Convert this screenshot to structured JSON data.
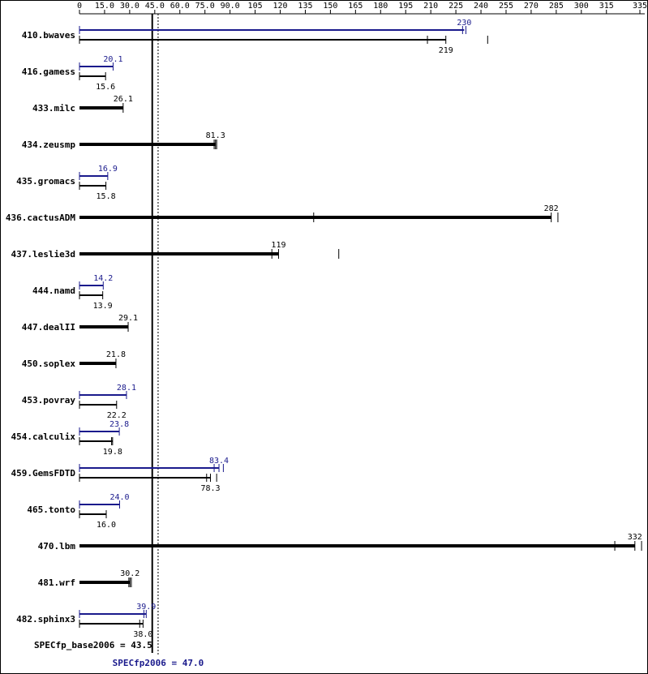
{
  "chart_data": {
    "type": "bar",
    "orientation": "horizontal",
    "x_ticks": [
      "0",
      "15.0",
      "30.0",
      "45.0",
      "60.0",
      "75.0",
      "90.0",
      "105",
      "120",
      "135",
      "150",
      "165",
      "180",
      "195",
      "210",
      "225",
      "240",
      "255",
      "270",
      "285",
      "300",
      "315",
      "335"
    ],
    "xlim": [
      0,
      335
    ],
    "colors": {
      "base": "#000000",
      "peak": "#1a1a8c",
      "frame": "#000000"
    },
    "series": [
      {
        "name": "base"
      },
      {
        "name": "peak"
      }
    ],
    "benchmarks": [
      {
        "name": "410.bwaves",
        "peak": 230,
        "peak_label": "230",
        "peak_runs": [
          229,
          231
        ],
        "base": 219,
        "base_label": "219",
        "base_runs": [
          208,
          219,
          244
        ]
      },
      {
        "name": "416.gamess",
        "peak": 20.1,
        "peak_label": "20.1",
        "peak_runs": [
          20.1
        ],
        "base": 15.6,
        "base_label": "15.6",
        "base_runs": [
          15.6
        ]
      },
      {
        "name": "433.milc",
        "base": 26.1,
        "base_label": "26.1",
        "base_runs": [
          26.1
        ],
        "single": true
      },
      {
        "name": "434.zeusmp",
        "base": 81.3,
        "base_label": "81.3",
        "base_runs": [
          80.5,
          81.3,
          82.0
        ],
        "single": true
      },
      {
        "name": "435.gromacs",
        "peak": 16.9,
        "peak_label": "16.9",
        "peak_runs": [
          16.9
        ],
        "base": 15.8,
        "base_label": "15.8",
        "base_runs": [
          15.8
        ]
      },
      {
        "name": "436.cactusADM",
        "base": 282,
        "base_label": "282",
        "base_runs": [
          140,
          282,
          286
        ],
        "single": true
      },
      {
        "name": "437.leslie3d",
        "base": 119,
        "base_label": "119",
        "base_runs": [
          115,
          119,
          155
        ],
        "single": true
      },
      {
        "name": "444.namd",
        "peak": 14.2,
        "peak_label": "14.2",
        "peak_runs": [
          14.2
        ],
        "base": 13.9,
        "base_label": "13.9",
        "base_runs": [
          13.9
        ]
      },
      {
        "name": "447.dealII",
        "base": 29.1,
        "base_label": "29.1",
        "base_runs": [
          29.1
        ],
        "single": true
      },
      {
        "name": "450.soplex",
        "base": 21.8,
        "base_label": "21.8",
        "base_runs": [
          21.8
        ],
        "single": true
      },
      {
        "name": "453.povray",
        "peak": 28.1,
        "peak_label": "28.1",
        "peak_runs": [
          28.1
        ],
        "base": 22.2,
        "base_label": "22.2",
        "base_runs": [
          22.2
        ]
      },
      {
        "name": "454.calculix",
        "peak": 23.8,
        "peak_label": "23.8",
        "peak_runs": [
          23.8
        ],
        "base": 19.8,
        "base_label": "19.8",
        "base_runs": [
          19.2,
          19.8
        ]
      },
      {
        "name": "459.GemsFDTD",
        "peak": 83.4,
        "peak_label": "83.4",
        "peak_runs": [
          80.5,
          83.4,
          86.0
        ],
        "base": 78.3,
        "base_label": "78.3",
        "base_runs": [
          76.0,
          78.3,
          82.0
        ]
      },
      {
        "name": "465.tonto",
        "peak": 24.0,
        "peak_label": "24.0",
        "peak_runs": [
          24.0
        ],
        "base": 16.0,
        "base_label": "16.0",
        "base_runs": [
          16.0
        ]
      },
      {
        "name": "470.lbm",
        "base": 332,
        "base_label": "332",
        "base_runs": [
          320,
          332,
          336
        ],
        "single": true
      },
      {
        "name": "481.wrf",
        "base": 30.2,
        "base_label": "30.2",
        "base_runs": [
          29.5,
          30.2,
          31.0
        ],
        "single": true
      },
      {
        "name": "482.sphinx3",
        "peak": 39.9,
        "peak_label": "39.9",
        "peak_runs": [
          38.5,
          39.9
        ],
        "base": 38.0,
        "base_label": "38.0",
        "base_runs": [
          36.0,
          38.0
        ]
      }
    ],
    "base_mean": {
      "label": "SPECfp_base2006 = 43.5",
      "value": 43.5
    },
    "peak_mean": {
      "label": "SPECfp2006 = 47.0",
      "value": 47.0
    },
    "grid": false
  }
}
